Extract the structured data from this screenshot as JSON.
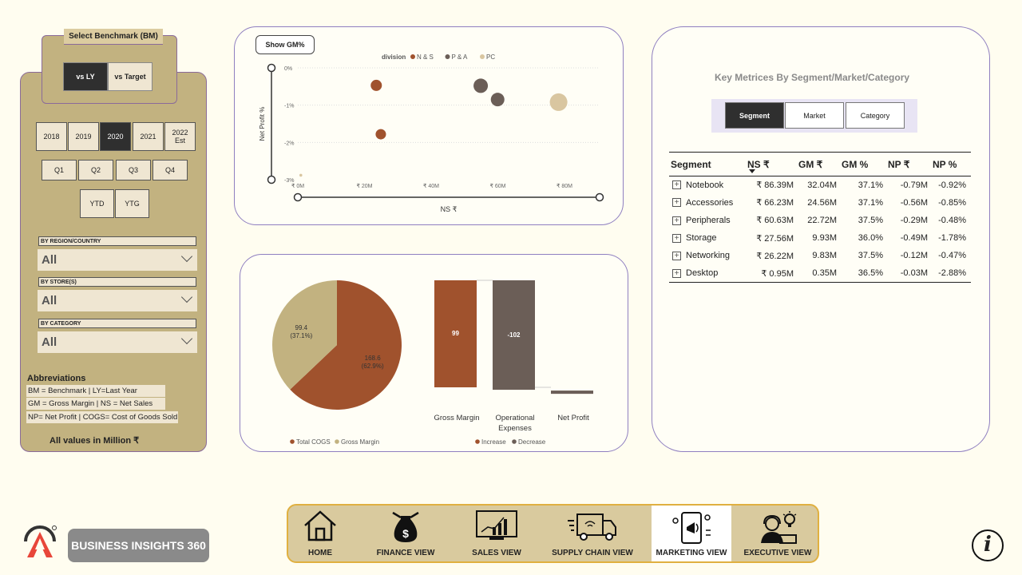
{
  "benchmark": {
    "title": "Select Benchmark (BM)",
    "options": [
      "vs LY",
      "vs Target"
    ],
    "selected": "vs LY"
  },
  "years": [
    {
      "label": "2018"
    },
    {
      "label": "2019"
    },
    {
      "label": "2020",
      "selected": true
    },
    {
      "label": "2021"
    },
    {
      "label": "2022\nEst"
    }
  ],
  "quarters": [
    "Q1",
    "Q2",
    "Q3",
    "Q4"
  ],
  "periods": [
    "YTD",
    "YTG"
  ],
  "filters": [
    {
      "label": "BY REGION/COUNTRY",
      "value": "All"
    },
    {
      "label": "BY STORE(S)",
      "value": "All"
    },
    {
      "label": "BY CATEGORY",
      "value": "All"
    }
  ],
  "abbreviations": {
    "title": "Abbreviations",
    "rows": [
      "BM = Benchmark | LY=Last Year",
      "GM = Gross Margin | NS = Net Sales",
      "NP= Net Profit | COGS= Cost of Goods Sold"
    ],
    "note": "All values in Million ₹"
  },
  "scatter": {
    "toggle_label": "Show GM%",
    "legend_title": "division",
    "legend": [
      {
        "name": "N & S",
        "color": "#a0522d"
      },
      {
        "name": "P & A",
        "color": "#6b5e57"
      },
      {
        "name": "PC",
        "color": "#d9c6a0"
      }
    ]
  },
  "pie": {
    "legend": [
      {
        "name": "Total COGS",
        "color": "#a0522d"
      },
      {
        "name": "Gross Margin",
        "color": "#c2b280"
      }
    ]
  },
  "waterfall": {
    "legend": [
      {
        "name": "Increase",
        "color": "#a0522d"
      },
      {
        "name": "Decrease",
        "color": "#6b5e57"
      }
    ]
  },
  "chart_data": [
    {
      "type": "scatter",
      "xlabel": "NS ₹",
      "ylabel": "Net Profit %",
      "xticks": [
        "₹ 0M",
        "₹ 20M",
        "₹ 40M",
        "₹ 60M",
        "₹ 80M"
      ],
      "yticks": [
        "0%",
        "-1%",
        "-2%",
        "-3%"
      ],
      "xlim": [
        0,
        90
      ],
      "ylim": [
        -3,
        0
      ],
      "series": [
        {
          "name": "N & S",
          "points": [
            {
              "x": 26,
              "y": -0.47
            },
            {
              "x": 27.5,
              "y": -1.78
            }
          ]
        },
        {
          "name": "P & A",
          "points": [
            {
              "x": 60.6,
              "y": -0.48
            },
            {
              "x": 66.2,
              "y": -0.85
            }
          ]
        },
        {
          "name": "PC",
          "points": [
            {
              "x": 86.4,
              "y": -0.92
            },
            {
              "x": 1,
              "y": -2.88
            }
          ]
        }
      ]
    },
    {
      "type": "pie",
      "slices": [
        {
          "name": "Total COGS",
          "value": 168.6,
          "label": "168.6",
          "pct": "(62.9%)"
        },
        {
          "name": "Gross Margin",
          "value": 99.4,
          "label": "99.4",
          "pct": "(37.1%)"
        }
      ]
    },
    {
      "type": "bar",
      "categories": [
        "Gross Margin",
        "Operational Expenses",
        "Net Profit"
      ],
      "values": [
        99,
        -102,
        -3
      ],
      "labels": [
        "99",
        "-102",
        ""
      ]
    }
  ],
  "metrics": {
    "title": "Key Metrices By Segment/Market/Category",
    "tabs": [
      "Segment",
      "Market",
      "Category"
    ],
    "active_tab": "Segment",
    "columns": [
      "Segment",
      "NS ₹",
      "GM ₹",
      "GM %",
      "NP ₹",
      "NP %"
    ],
    "rows": [
      [
        "Notebook",
        "₹ 86.39M",
        "32.04M",
        "37.1%",
        "-0.79M",
        "-0.92%"
      ],
      [
        "Accessories",
        "₹ 66.23M",
        "24.56M",
        "37.1%",
        "-0.56M",
        "-0.85%"
      ],
      [
        "Peripherals",
        "₹ 60.63M",
        "22.72M",
        "37.5%",
        "-0.29M",
        "-0.48%"
      ],
      [
        "Storage",
        "₹ 27.56M",
        "9.93M",
        "36.0%",
        "-0.49M",
        "-1.78%"
      ],
      [
        "Networking",
        "₹ 26.22M",
        "9.83M",
        "37.5%",
        "-0.12M",
        "-0.47%"
      ],
      [
        "Desktop",
        "₹ 0.95M",
        "0.35M",
        "36.5%",
        "-0.03M",
        "-2.88%"
      ]
    ]
  },
  "brand": {
    "name": "BUSINESS INSIGHTS 360"
  },
  "nav": [
    {
      "label": "HOME",
      "icon": "home-icon"
    },
    {
      "label": "FINANCE VIEW",
      "icon": "money-bag-icon"
    },
    {
      "label": "SALES VIEW",
      "icon": "bar-chart-icon"
    },
    {
      "label": "SUPPLY CHAIN VIEW",
      "icon": "truck-icon"
    },
    {
      "label": "MARKETING VIEW",
      "icon": "marketing-icon",
      "active": true
    },
    {
      "label": "EXECUTIVE VIEW",
      "icon": "executive-icon"
    }
  ],
  "info_glyph": "i"
}
